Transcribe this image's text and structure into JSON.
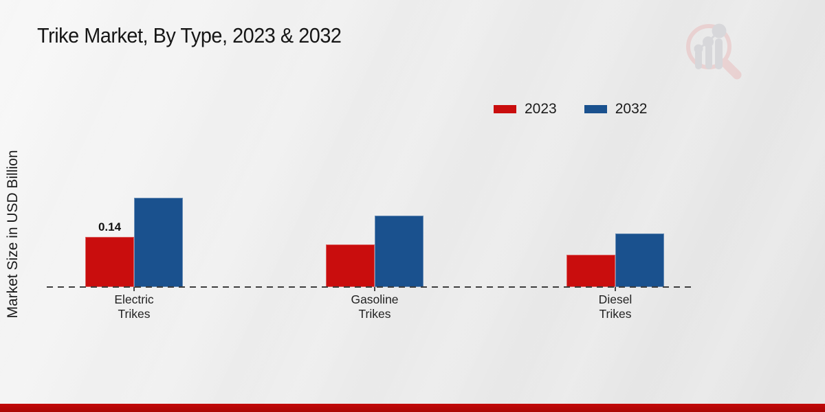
{
  "title": "Trike Market, By Type, 2023 & 2032",
  "y_axis_label": "Market Size in USD Billion",
  "legend": {
    "position": "top-right",
    "items": [
      {
        "label": "2023",
        "color": "#c90d0d"
      },
      {
        "label": "2032",
        "color": "#1a518e"
      }
    ]
  },
  "chart_data": {
    "type": "bar",
    "categories": [
      "Electric Trikes",
      "Gasoline Trikes",
      "Diesel Trikes"
    ],
    "series": [
      {
        "name": "2023",
        "color": "#c90d0d",
        "values": [
          0.14,
          0.12,
          0.09
        ],
        "value_labels": [
          "0.14",
          "",
          ""
        ]
      },
      {
        "name": "2032",
        "color": "#1a518e",
        "values": [
          0.25,
          0.2,
          0.15
        ],
        "value_labels": [
          "",
          "",
          ""
        ]
      }
    ],
    "title": "Trike Market, By Type, 2023 & 2032",
    "xlabel": "",
    "ylabel": "Market Size in USD Billion",
    "ylim": [
      0,
      0.3
    ],
    "grid": false,
    "baseline_style": "dashed",
    "unit": "USD Billion"
  },
  "footer": {
    "bar_color": "#b30707"
  },
  "logo": {
    "name": "market-research-future-watermark"
  }
}
